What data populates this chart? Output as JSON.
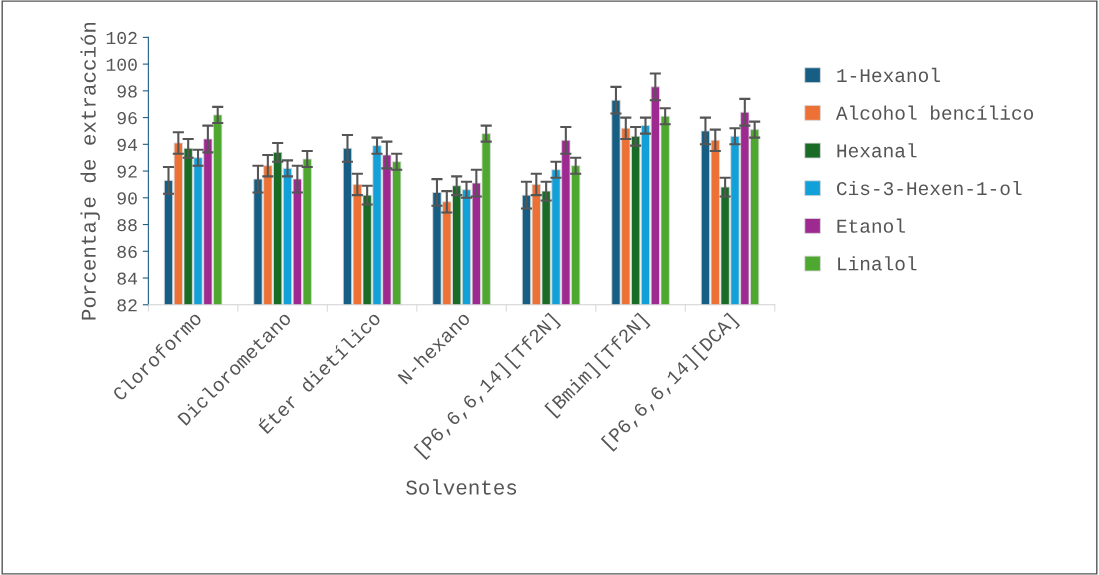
{
  "chart_data": {
    "type": "bar",
    "xlabel": "Solventes",
    "ylabel": "Porcentaje de extracción",
    "categories": [
      "Cloroformo",
      "Diclorometano",
      "Éter dietílico",
      "N-hexano",
      "[P6,6,6,14][Tf2N]",
      "[Bmim][Tf2N]",
      "[P6,6,6,14][DCA]"
    ],
    "series": [
      {
        "name": "1-Hexanol",
        "color": "#175e84",
        "values": [
          91.3,
          91.4,
          93.7,
          90.4,
          90.2,
          97.3,
          95.0
        ],
        "errors": [
          1.0,
          1.0,
          1.0,
          1.0,
          1.0,
          1.0,
          1.0
        ]
      },
      {
        "name": "Alcohol bencílico",
        "color": "#ed7134",
        "values": [
          94.1,
          92.4,
          91.0,
          89.7,
          91.0,
          95.2,
          94.3
        ],
        "errors": [
          0.8,
          0.8,
          0.8,
          0.8,
          0.8,
          0.8,
          0.8
        ]
      },
      {
        "name": "Hexanal",
        "color": "#1a6b26",
        "values": [
          93.7,
          93.4,
          90.2,
          90.9,
          90.5,
          94.6,
          90.8
        ],
        "errors": [
          0.7,
          0.7,
          0.7,
          0.7,
          0.7,
          0.7,
          0.7
        ]
      },
      {
        "name": "Cis-3-Hexen-1-ol",
        "color": "#12a0d8",
        "values": [
          93.0,
          92.2,
          93.9,
          90.6,
          92.1,
          95.4,
          94.6
        ],
        "errors": [
          0.6,
          0.6,
          0.6,
          0.6,
          0.6,
          0.6,
          0.6
        ]
      },
      {
        "name": "Etanol",
        "color": "#9e2a91",
        "values": [
          94.4,
          91.4,
          93.2,
          91.1,
          94.3,
          98.3,
          96.4
        ],
        "errors": [
          1.0,
          1.0,
          1.0,
          1.0,
          1.0,
          1.0,
          1.0
        ]
      },
      {
        "name": "Linalol",
        "color": "#4ea82f",
        "values": [
          96.2,
          92.9,
          92.7,
          94.8,
          92.4,
          96.1,
          95.1
        ],
        "errors": [
          0.6,
          0.6,
          0.6,
          0.6,
          0.6,
          0.6,
          0.6
        ]
      }
    ],
    "ylim": [
      82,
      102
    ],
    "yticks": [
      82,
      84,
      86,
      88,
      90,
      92,
      94,
      96,
      98,
      100,
      102
    ],
    "grid": false,
    "legend": "right"
  }
}
